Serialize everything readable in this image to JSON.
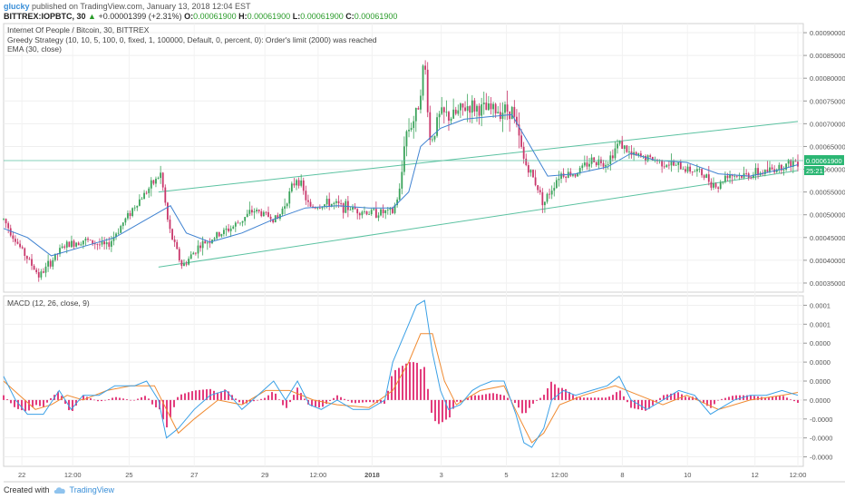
{
  "header": {
    "user": "glucky",
    "published": " published on TradingView.com, January 13, 2018 12:04 EST",
    "symbol": "BITTREX:IOPBTC, 30",
    "change_arrow": "▲",
    "change": "+0.00001399 (+2.31%)",
    "open_label": "O:",
    "open": "0.00061900",
    "high_label": "H:",
    "high": "0.00061900",
    "low_label": "L:",
    "low": "0.00061900",
    "close_label": "C:",
    "close": "0.00061900"
  },
  "legend": {
    "title": "Internet Of People / Bitcoin, 30, BITTREX",
    "strategy": "Greedy Strategy (10, 10, 5, 100, 0, fixed, 1, 100000, Default, 0, percent, 0): Order's limit (2000) was reached",
    "ema": "EMA (30, close)",
    "macd": "MACD (12, 26, close, 9)"
  },
  "footer": {
    "created_with": "Created with",
    "brand": "TradingView"
  },
  "colors": {
    "up": "#3aa35a",
    "down": "#c9376b",
    "ema": "#3f82d1",
    "channel": "#5bc2a1",
    "macd_line": "#3aa0e6",
    "signal_line": "#f08a30",
    "histogram": "#e0286f",
    "price_badge": "#2bb673",
    "timer_badge": "#2bb673"
  },
  "chart_data": [
    {
      "type": "candlestick",
      "price_axis": {
        "ticks": [
          "0.00090000",
          "0.00085000",
          "0.00080000",
          "0.00075000",
          "0.00070000",
          "0.00065000",
          "0.00060000",
          "0.00055000",
          "0.00050000",
          "0.00045000",
          "0.00040000",
          "0.00035000"
        ],
        "tick_values": [
          0.0009,
          0.00085,
          0.0008,
          0.00075,
          0.0007,
          0.00065,
          0.0006,
          0.00055,
          0.0005,
          0.00045,
          0.0004,
          0.00035
        ],
        "range": [
          0.00033,
          0.00092
        ]
      },
      "time_axis": {
        "labels": [
          "22",
          "12:00",
          "25",
          "27",
          "29",
          "12:00",
          "2018",
          "3",
          "5",
          "12:00",
          "8",
          "10",
          "12",
          "12:00"
        ],
        "label_pos": [
          0.023,
          0.087,
          0.158,
          0.24,
          0.329,
          0.396,
          0.464,
          0.551,
          0.633,
          0.7,
          0.779,
          0.861,
          0.946,
          1.0
        ]
      },
      "current_price": "0.00061900",
      "current_value": 0.000619,
      "timer": "25:21",
      "price_path": [
        [
          0,
          0.00049
        ],
        [
          0.02,
          0.00043
        ],
        [
          0.045,
          0.000365
        ],
        [
          0.075,
          0.00043
        ],
        [
          0.1,
          0.000445
        ],
        [
          0.13,
          0.00043
        ],
        [
          0.165,
          0.00052
        ],
        [
          0.198,
          0.00059
        ],
        [
          0.208,
          0.00047
        ],
        [
          0.225,
          0.000385
        ],
        [
          0.245,
          0.00043
        ],
        [
          0.265,
          0.00045
        ],
        [
          0.29,
          0.000475
        ],
        [
          0.315,
          0.00051
        ],
        [
          0.345,
          0.00049
        ],
        [
          0.37,
          0.000585
        ],
        [
          0.385,
          0.000515
        ],
        [
          0.41,
          0.000525
        ],
        [
          0.435,
          0.000515
        ],
        [
          0.46,
          0.000505
        ],
        [
          0.49,
          0.000505
        ],
        [
          0.5,
          0.00056
        ],
        [
          0.505,
          0.000675
        ],
        [
          0.52,
          0.00072
        ],
        [
          0.53,
          0.00084
        ],
        [
          0.537,
          0.00066
        ],
        [
          0.55,
          0.00072
        ],
        [
          0.565,
          0.000715
        ],
        [
          0.585,
          0.00074
        ],
        [
          0.605,
          0.00073
        ],
        [
          0.625,
          0.00073
        ],
        [
          0.64,
          0.00073
        ],
        [
          0.655,
          0.00062
        ],
        [
          0.67,
          0.00057
        ],
        [
          0.68,
          0.000525
        ],
        [
          0.7,
          0.00059
        ],
        [
          0.72,
          0.00059
        ],
        [
          0.74,
          0.00062
        ],
        [
          0.76,
          0.000615
        ],
        [
          0.775,
          0.00066
        ],
        [
          0.79,
          0.00063
        ],
        [
          0.81,
          0.000625
        ],
        [
          0.83,
          0.000615
        ],
        [
          0.85,
          0.000605
        ],
        [
          0.875,
          0.000595
        ],
        [
          0.9,
          0.00056
        ],
        [
          0.91,
          0.00059
        ],
        [
          0.93,
          0.000585
        ],
        [
          0.96,
          0.000595
        ],
        [
          0.985,
          0.00061
        ],
        [
          1,
          0.000619
        ]
      ],
      "ema_path": [
        [
          0,
          0.00047
        ],
        [
          0.03,
          0.00045
        ],
        [
          0.06,
          0.00041
        ],
        [
          0.1,
          0.00043
        ],
        [
          0.14,
          0.00045
        ],
        [
          0.18,
          0.00049
        ],
        [
          0.21,
          0.00052
        ],
        [
          0.23,
          0.00046
        ],
        [
          0.26,
          0.00044
        ],
        [
          0.3,
          0.00046
        ],
        [
          0.34,
          0.00049
        ],
        [
          0.38,
          0.000515
        ],
        [
          0.42,
          0.00052
        ],
        [
          0.46,
          0.000515
        ],
        [
          0.49,
          0.000515
        ],
        [
          0.51,
          0.00055
        ],
        [
          0.525,
          0.00065
        ],
        [
          0.55,
          0.00069
        ],
        [
          0.58,
          0.00071
        ],
        [
          0.61,
          0.000715
        ],
        [
          0.64,
          0.00072
        ],
        [
          0.66,
          0.00066
        ],
        [
          0.685,
          0.000585
        ],
        [
          0.72,
          0.00059
        ],
        [
          0.76,
          0.000605
        ],
        [
          0.79,
          0.000635
        ],
        [
          0.82,
          0.00062
        ],
        [
          0.86,
          0.000615
        ],
        [
          0.9,
          0.00059
        ],
        [
          0.94,
          0.000585
        ],
        [
          0.98,
          0.0006
        ],
        [
          1,
          0.00061
        ]
      ],
      "channel_upper": [
        [
          0.195,
          0.00055
        ],
        [
          1.0,
          0.000705
        ]
      ],
      "channel_lower": [
        [
          0.195,
          0.000385
        ],
        [
          1.0,
          0.000597
        ]
      ]
    },
    {
      "type": "macd",
      "axis": {
        "ticks": [
          "0.0001",
          "0.0001",
          "0.0000",
          "0.0000",
          "0.0000",
          "0.0000",
          "-0.0000",
          "-0.0000",
          "-0.0000"
        ],
        "tick_values": [
          0.0001,
          8e-05,
          6e-05,
          4e-05,
          2e-05,
          0.0,
          -2e-05,
          -4e-05,
          -6e-05
        ],
        "range": [
          -7e-05,
          0.00011
        ]
      },
      "macd_path": [
        [
          0,
          2.5e-05
        ],
        [
          0.015,
          0.0
        ],
        [
          0.03,
          -1.5e-05
        ],
        [
          0.05,
          -1.5e-05
        ],
        [
          0.07,
          1e-05
        ],
        [
          0.085,
          -1e-05
        ],
        [
          0.1,
          5e-06
        ],
        [
          0.12,
          5e-06
        ],
        [
          0.14,
          1.5e-05
        ],
        [
          0.165,
          1.5e-05
        ],
        [
          0.18,
          2e-05
        ],
        [
          0.195,
          0.0
        ],
        [
          0.205,
          -4e-05
        ],
        [
          0.22,
          -3e-05
        ],
        [
          0.24,
          -1e-05
        ],
        [
          0.26,
          5e-06
        ],
        [
          0.28,
          1e-05
        ],
        [
          0.3,
          -1e-05
        ],
        [
          0.32,
          5e-06
        ],
        [
          0.34,
          2e-05
        ],
        [
          0.355,
          0.0
        ],
        [
          0.37,
          2e-05
        ],
        [
          0.385,
          -5e-06
        ],
        [
          0.4,
          -1e-05
        ],
        [
          0.42,
          0.0
        ],
        [
          0.44,
          -1e-05
        ],
        [
          0.46,
          -1e-05
        ],
        [
          0.48,
          0.0
        ],
        [
          0.49,
          4e-05
        ],
        [
          0.5,
          6e-05
        ],
        [
          0.51,
          8e-05
        ],
        [
          0.52,
          0.0001
        ],
        [
          0.53,
          0.000105
        ],
        [
          0.54,
          5e-05
        ],
        [
          0.55,
          1e-05
        ],
        [
          0.56,
          -1e-05
        ],
        [
          0.575,
          -5e-06
        ],
        [
          0.59,
          1e-05
        ],
        [
          0.6,
          1.5e-05
        ],
        [
          0.615,
          2e-05
        ],
        [
          0.63,
          2e-05
        ],
        [
          0.645,
          -1.5e-05
        ],
        [
          0.655,
          -4.5e-05
        ],
        [
          0.665,
          -5e-05
        ],
        [
          0.68,
          -3e-05
        ],
        [
          0.69,
          0.0
        ],
        [
          0.705,
          1e-05
        ],
        [
          0.72,
          5e-06
        ],
        [
          0.74,
          1e-05
        ],
        [
          0.76,
          1.5e-05
        ],
        [
          0.775,
          2.5e-05
        ],
        [
          0.79,
          0.0
        ],
        [
          0.81,
          -1e-05
        ],
        [
          0.83,
          0.0
        ],
        [
          0.85,
          1e-05
        ],
        [
          0.87,
          5e-06
        ],
        [
          0.89,
          -1.5e-05
        ],
        [
          0.9,
          -1e-05
        ],
        [
          0.92,
          0.0
        ],
        [
          0.94,
          5e-06
        ],
        [
          0.96,
          5e-06
        ],
        [
          0.98,
          1e-05
        ],
        [
          1,
          5e-06
        ]
      ],
      "signal_path": [
        [
          0,
          2e-05
        ],
        [
          0.02,
          5e-06
        ],
        [
          0.04,
          -1e-05
        ],
        [
          0.06,
          -5e-06
        ],
        [
          0.08,
          5e-06
        ],
        [
          0.1,
          0.0
        ],
        [
          0.13,
          1e-05
        ],
        [
          0.16,
          1.5e-05
        ],
        [
          0.19,
          1.5e-05
        ],
        [
          0.205,
          -1e-05
        ],
        [
          0.22,
          -3.5e-05
        ],
        [
          0.24,
          -2e-05
        ],
        [
          0.27,
          0.0
        ],
        [
          0.3,
          -5e-06
        ],
        [
          0.33,
          1e-05
        ],
        [
          0.36,
          1e-05
        ],
        [
          0.39,
          0.0
        ],
        [
          0.42,
          -5e-06
        ],
        [
          0.46,
          -8e-06
        ],
        [
          0.49,
          1e-05
        ],
        [
          0.51,
          4e-05
        ],
        [
          0.525,
          7e-05
        ],
        [
          0.54,
          7e-05
        ],
        [
          0.555,
          2e-05
        ],
        [
          0.57,
          -5e-06
        ],
        [
          0.6,
          1e-05
        ],
        [
          0.63,
          1.5e-05
        ],
        [
          0.65,
          -2e-05
        ],
        [
          0.665,
          -4.5e-05
        ],
        [
          0.68,
          -3.5e-05
        ],
        [
          0.7,
          -5e-06
        ],
        [
          0.73,
          5e-06
        ],
        [
          0.77,
          1.5e-05
        ],
        [
          0.8,
          5e-06
        ],
        [
          0.83,
          -5e-06
        ],
        [
          0.86,
          5e-06
        ],
        [
          0.9,
          -1e-05
        ],
        [
          0.94,
          0.0
        ],
        [
          0.98,
          5e-06
        ],
        [
          1,
          8e-06
        ]
      ]
    }
  ]
}
